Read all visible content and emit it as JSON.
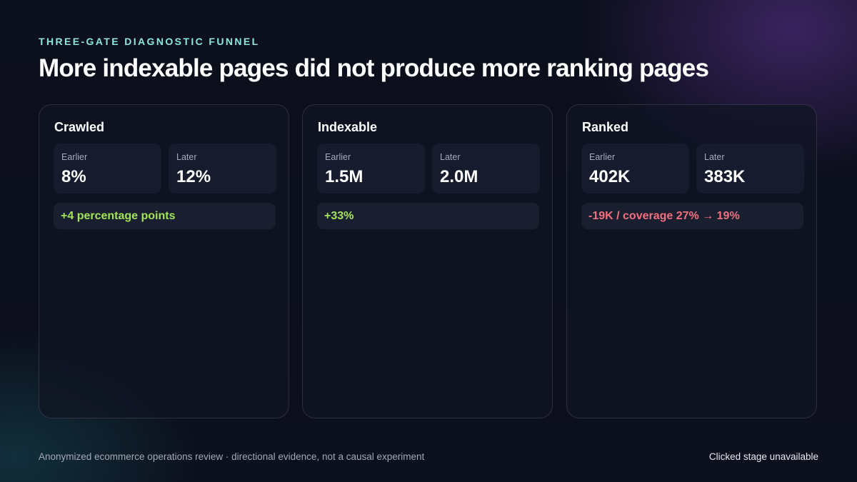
{
  "header": {
    "eyebrow": "THREE-GATE DIAGNOSTIC FUNNEL",
    "title": "More indexable pages did not produce more ranking pages"
  },
  "stages": [
    {
      "title": "Crawled",
      "earlier_label": "Earlier",
      "earlier_value": "8%",
      "later_label": "Later",
      "later_value": "12%",
      "delta": "+4 percentage points",
      "delta_status": "positive"
    },
    {
      "title": "Indexable",
      "earlier_label": "Earlier",
      "earlier_value": "1.5M",
      "later_label": "Later",
      "later_value": "2.0M",
      "delta": "+33%",
      "delta_status": "positive"
    },
    {
      "title": "Ranked",
      "earlier_label": "Earlier",
      "earlier_value": "402K",
      "later_label": "Later",
      "later_value": "383K",
      "delta": "-19K / coverage 27% → 19%",
      "delta_status": "negative"
    }
  ],
  "footer": {
    "note": "Anonymized ecommerce operations review · directional evidence, not a causal experiment",
    "status": "Clicked stage unavailable"
  },
  "colors": {
    "eyebrow": "#8be6df",
    "positive": "#a3e35a",
    "negative": "#f1707f",
    "background": "#0c0f1c",
    "accent_glow": "#603496"
  }
}
